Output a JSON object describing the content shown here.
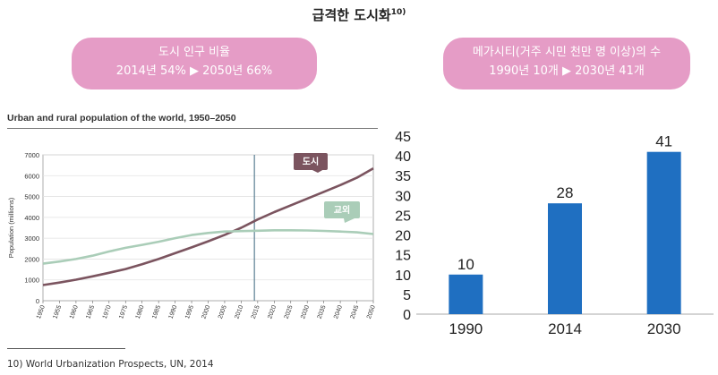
{
  "header": {
    "title": "급격한 도시화",
    "footnote_ref": "10)"
  },
  "pills": [
    {
      "line1": "도시 인구 비율",
      "line2": "2014년 54% ▶ 2050년 66%"
    },
    {
      "line1": "메가시티(거주 시민 천만 명 이상)의 수",
      "line2": "1990년 10개 ▶ 2030년 41개"
    }
  ],
  "footnote": {
    "text": "10)   World Urbanization Prospects, UN, 2014"
  },
  "chart_data": [
    {
      "type": "line",
      "title": "Urban and rural population of the world, 1950–2050",
      "xlabel": "",
      "ylabel": "Population (millions)",
      "x": [
        1950,
        1955,
        1960,
        1965,
        1970,
        1975,
        1980,
        1985,
        1990,
        1995,
        2000,
        2005,
        2010,
        2015,
        2020,
        2025,
        2030,
        2035,
        2040,
        2045,
        2050
      ],
      "xlim": [
        1950,
        2050
      ],
      "ylim": [
        0,
        7000
      ],
      "yticks": [
        0,
        1000,
        2000,
        3000,
        4000,
        5000,
        6000,
        7000
      ],
      "reference_line_x": 2014,
      "series": [
        {
          "name": "도시",
          "color": "#7b545f",
          "values": [
            750,
            870,
            1010,
            1170,
            1340,
            1520,
            1750,
            2000,
            2280,
            2560,
            2850,
            3160,
            3500,
            3900,
            4250,
            4580,
            4900,
            5220,
            5550,
            5900,
            6350
          ]
        },
        {
          "name": "교외",
          "color": "#aacdb8",
          "values": [
            1780,
            1880,
            2000,
            2160,
            2360,
            2540,
            2680,
            2830,
            3000,
            3150,
            3250,
            3320,
            3340,
            3360,
            3380,
            3380,
            3370,
            3350,
            3320,
            3280,
            3200
          ]
        }
      ]
    },
    {
      "type": "bar",
      "categories": [
        "1990",
        "2014",
        "2030"
      ],
      "values": [
        10,
        28,
        41
      ],
      "ylim": [
        0,
        45
      ],
      "yticks": [
        0,
        5,
        10,
        15,
        20,
        25,
        30,
        35,
        40,
        45
      ],
      "color": "#1f6fc1"
    }
  ]
}
